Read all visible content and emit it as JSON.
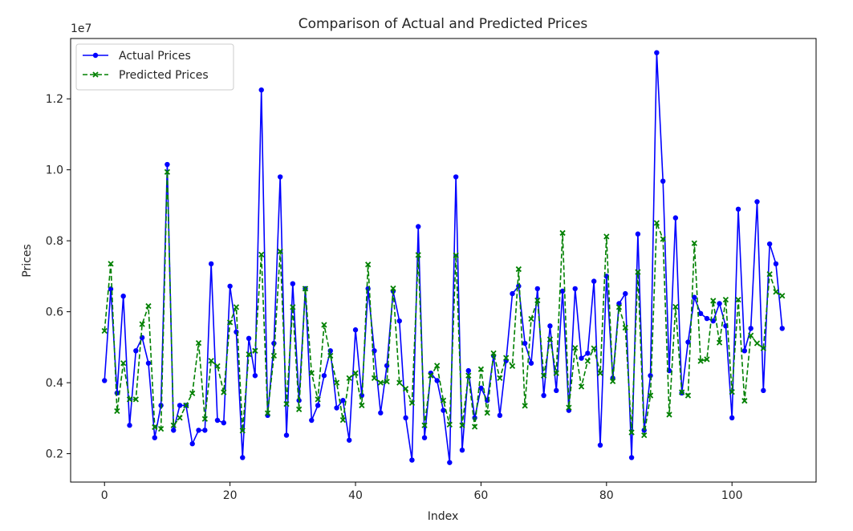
{
  "chart_data": {
    "type": "line",
    "title": "Comparison of Actual and Predicted Prices",
    "xlabel": "Index",
    "ylabel": "Prices",
    "y_scale_label": "1e7",
    "xlim": [
      -5.4,
      113.4
    ],
    "ylim": [
      1200000,
      13700000
    ],
    "x_ticks": [
      0,
      20,
      40,
      60,
      80,
      100
    ],
    "x_tick_labels": [
      "0",
      "20",
      "40",
      "60",
      "80",
      "100"
    ],
    "y_ticks": [
      2000000,
      4000000,
      6000000,
      8000000,
      10000000,
      12000000
    ],
    "y_tick_labels": [
      "0.2",
      "0.4",
      "0.6",
      "0.8",
      "1.0",
      "1.2"
    ],
    "legend_position": "top-left",
    "grid": false,
    "series": [
      {
        "name": "Actual Prices",
        "color": "#0000ff",
        "style": "solid",
        "marker": "circle",
        "values": [
          4060000,
          6640000,
          3710000,
          6440000,
          2800000,
          4900000,
          5270000,
          4550000,
          2450000,
          3360000,
          10150000,
          2660000,
          3360000,
          3360000,
          2280000,
          2660000,
          2660000,
          7350000,
          2940000,
          2870000,
          6720000,
          5430000,
          1890000,
          5250000,
          4200000,
          12250000,
          3080000,
          5110000,
          9800000,
          2520000,
          6790000,
          3500000,
          6650000,
          2940000,
          3360000,
          4200000,
          4900000,
          3290000,
          3500000,
          2380000,
          5490000,
          3640000,
          6650000,
          4900000,
          3150000,
          4480000,
          6580000,
          5740000,
          3010000,
          1820000,
          8400000,
          2450000,
          4270000,
          4060000,
          3220000,
          1750000,
          9800000,
          2100000,
          4340000,
          3010000,
          3850000,
          3500000,
          4760000,
          3080000,
          4620000,
          6510000,
          6720000,
          5110000,
          4550000,
          6650000,
          3640000,
          5600000,
          3780000,
          6580000,
          3220000,
          6650000,
          4690000,
          4830000,
          6860000,
          2240000,
          7000000,
          4130000,
          6230000,
          6510000,
          1890000,
          8190000,
          2660000,
          4200000,
          13300000,
          9681000,
          4340000,
          8645000,
          3710000,
          5145000,
          6405000,
          5950000,
          5810000,
          5740000,
          6230000,
          5600000,
          3010000,
          8890000,
          4900000,
          5530000,
          9100000,
          3780000,
          7910000,
          7350000,
          5530000
        ]
      },
      {
        "name": "Predicted Prices",
        "color": "#008000",
        "style": "dashed",
        "marker": "x",
        "values": [
          5460000,
          7350000,
          3200000,
          4550000,
          3530000,
          3530000,
          5650000,
          6160000,
          2750000,
          2700000,
          9940000,
          2800000,
          3010000,
          3360000,
          3700000,
          5120000,
          2980000,
          4620000,
          4470000,
          3730000,
          5700000,
          6130000,
          2650000,
          4800000,
          4900000,
          7610000,
          3140000,
          4760000,
          7700000,
          3400000,
          6130000,
          3250000,
          6650000,
          4270000,
          3530000,
          5630000,
          4760000,
          4000000,
          2950000,
          4130000,
          4270000,
          3360000,
          7330000,
          4130000,
          4000000,
          4030000,
          6660000,
          4000000,
          3830000,
          3430000,
          7600000,
          2800000,
          4200000,
          4480000,
          3500000,
          2820000,
          7590000,
          2800000,
          4200000,
          2760000,
          4380000,
          3150000,
          4830000,
          4130000,
          4700000,
          4470000,
          7200000,
          3350000,
          5800000,
          6320000,
          4200000,
          5220000,
          4270000,
          8220000,
          3300000,
          4980000,
          3890000,
          4610000,
          4970000,
          4270000,
          8120000,
          4040000,
          6130000,
          5550000,
          2600000,
          7120000,
          2520000,
          3640000,
          8500000,
          8050000,
          3100000,
          6140000,
          3730000,
          3640000,
          7930000,
          4610000,
          4660000,
          6310000,
          5130000,
          6340000,
          3740000,
          6340000,
          3490000,
          5330000,
          5110000,
          4970000,
          7060000,
          6560000,
          6450000
        ]
      }
    ]
  }
}
